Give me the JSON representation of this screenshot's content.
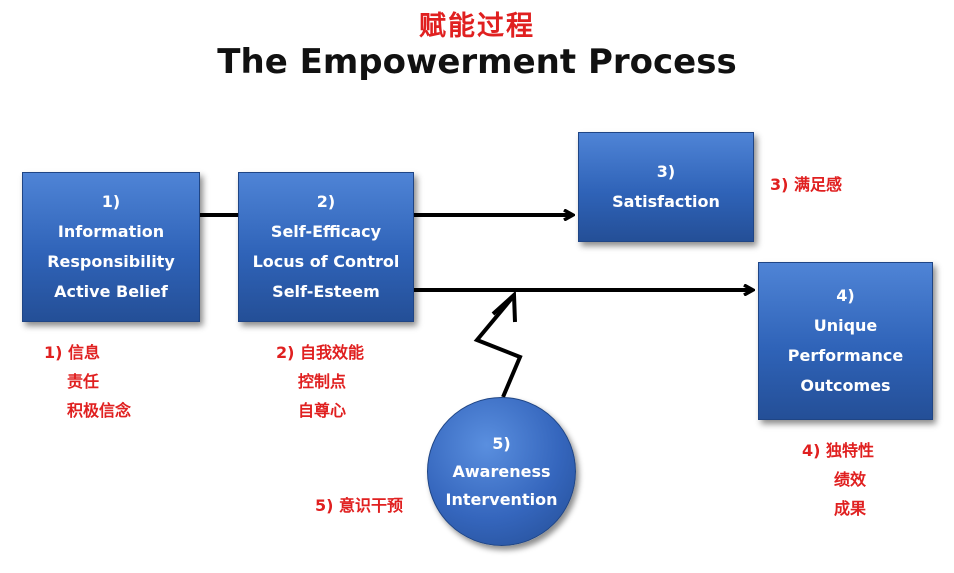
{
  "title": {
    "chinese": "赋能过程",
    "english": "The Empowerment Process"
  },
  "boxes": {
    "b1": {
      "number": "1)",
      "lines": [
        "Information",
        "Responsibility",
        "Active Belief"
      ]
    },
    "b2": {
      "number": "2)",
      "lines": [
        "Self-Efficacy",
        "Locus of Control",
        "Self-Esteem"
      ]
    },
    "b3": {
      "number": "3)",
      "lines": [
        "Satisfaction"
      ]
    },
    "b4": {
      "number": "4)",
      "lines": [
        "Unique",
        "Performance",
        "Outcomes"
      ]
    },
    "b5": {
      "number": "5)",
      "lines": [
        "Awareness",
        "Intervention"
      ]
    }
  },
  "annotations": {
    "a1": [
      "1) 信息",
      "责任",
      "积极信念"
    ],
    "a2": [
      "2) 自我效能",
      "控制点",
      "自尊心"
    ],
    "a3": [
      "3) 满足感"
    ],
    "a4": [
      "4) 独特性",
      "绩效",
      "成果"
    ],
    "a5": [
      "5) 意识干预"
    ]
  },
  "colors": {
    "box_fill": "#3a6fc4",
    "annotation_red": "#e02020",
    "title_black": "#111111",
    "arrow_black": "#000000"
  }
}
